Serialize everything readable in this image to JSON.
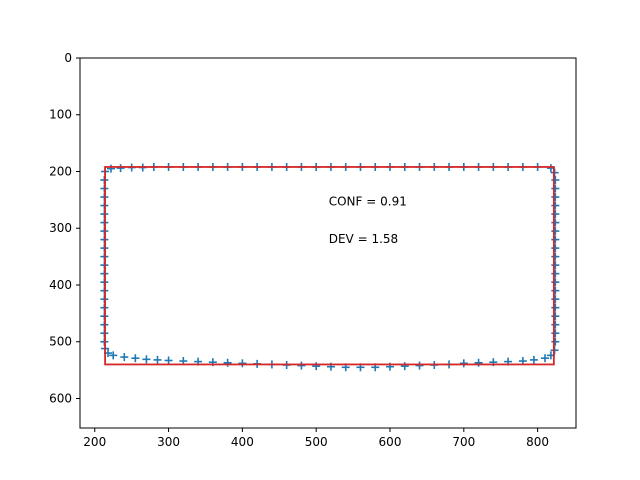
{
  "chart_data": {
    "type": "scatter",
    "title": "",
    "xlabel": "",
    "ylabel": "",
    "xlim": [
      180,
      852
    ],
    "ylim": [
      652,
      0
    ],
    "y_inverted": true,
    "grid": false,
    "x_ticks": [
      200,
      300,
      400,
      500,
      600,
      700,
      800
    ],
    "y_ticks": [
      0,
      100,
      200,
      300,
      400,
      500,
      600
    ],
    "marker": "+",
    "colors": {
      "points": "#1f77b4",
      "box": "#d62728"
    },
    "series": [
      {
        "values": [
          [
            214,
            200
          ],
          [
            213,
            215
          ],
          [
            213,
            230
          ],
          [
            213,
            245
          ],
          [
            213,
            260
          ],
          [
            213,
            275
          ],
          [
            213,
            290
          ],
          [
            213,
            305
          ],
          [
            213,
            320
          ],
          [
            213,
            335
          ],
          [
            213,
            350
          ],
          [
            213,
            365
          ],
          [
            213,
            380
          ],
          [
            213,
            395
          ],
          [
            213,
            410
          ],
          [
            213,
            425
          ],
          [
            213,
            440
          ],
          [
            213,
            455
          ],
          [
            213,
            470
          ],
          [
            213,
            485
          ],
          [
            213,
            500
          ],
          [
            214,
            512
          ],
          [
            218,
            520
          ],
          [
            225,
            524
          ],
          [
            240,
            527
          ],
          [
            255,
            529
          ],
          [
            270,
            531
          ],
          [
            285,
            532
          ],
          [
            300,
            533
          ],
          [
            320,
            534
          ],
          [
            340,
            535
          ],
          [
            360,
            536
          ],
          [
            380,
            537
          ],
          [
            400,
            538
          ],
          [
            420,
            539
          ],
          [
            440,
            540
          ],
          [
            460,
            541
          ],
          [
            480,
            542
          ],
          [
            500,
            543
          ],
          [
            520,
            544
          ],
          [
            540,
            545
          ],
          [
            560,
            545
          ],
          [
            580,
            545
          ],
          [
            600,
            544
          ],
          [
            620,
            543
          ],
          [
            640,
            542
          ],
          [
            660,
            541
          ],
          [
            680,
            540
          ],
          [
            700,
            538
          ],
          [
            720,
            537
          ],
          [
            740,
            536
          ],
          [
            760,
            535
          ],
          [
            780,
            534
          ],
          [
            795,
            532
          ],
          [
            810,
            529
          ],
          [
            818,
            524
          ],
          [
            823,
            515
          ],
          [
            824,
            500
          ],
          [
            824,
            485
          ],
          [
            824,
            470
          ],
          [
            824,
            455
          ],
          [
            824,
            440
          ],
          [
            824,
            425
          ],
          [
            824,
            410
          ],
          [
            824,
            395
          ],
          [
            824,
            380
          ],
          [
            824,
            365
          ],
          [
            824,
            350
          ],
          [
            824,
            335
          ],
          [
            824,
            320
          ],
          [
            824,
            305
          ],
          [
            824,
            290
          ],
          [
            824,
            275
          ],
          [
            824,
            260
          ],
          [
            824,
            245
          ],
          [
            824,
            230
          ],
          [
            824,
            215
          ],
          [
            823,
            202
          ],
          [
            818,
            194
          ],
          [
            800,
            192
          ],
          [
            780,
            192
          ],
          [
            760,
            192
          ],
          [
            740,
            192
          ],
          [
            720,
            192
          ],
          [
            700,
            192
          ],
          [
            680,
            192
          ],
          [
            660,
            192
          ],
          [
            640,
            192
          ],
          [
            620,
            192
          ],
          [
            600,
            192
          ],
          [
            580,
            192
          ],
          [
            560,
            192
          ],
          [
            540,
            192
          ],
          [
            520,
            192
          ],
          [
            500,
            192
          ],
          [
            480,
            192
          ],
          [
            460,
            192
          ],
          [
            440,
            192
          ],
          [
            420,
            192
          ],
          [
            400,
            192
          ],
          [
            380,
            192
          ],
          [
            360,
            192
          ],
          [
            340,
            192
          ],
          [
            320,
            192
          ],
          [
            300,
            192
          ],
          [
            280,
            192
          ],
          [
            265,
            193
          ],
          [
            250,
            193
          ],
          [
            235,
            194
          ],
          [
            222,
            195
          ]
        ]
      }
    ],
    "box": {
      "x0": 214,
      "y0": 192,
      "x1": 822,
      "y1": 540
    },
    "annotations": [
      {
        "text": "CONF = 0.91",
        "x": 517,
        "y": 253
      },
      {
        "text": "DEV = 1.58",
        "x": 517,
        "y": 319
      }
    ]
  }
}
